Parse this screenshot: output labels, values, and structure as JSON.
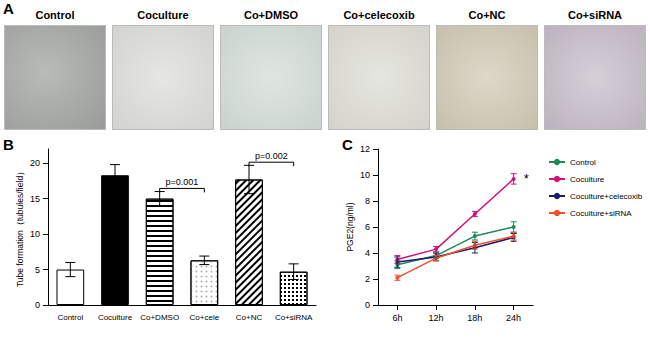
{
  "panel_labels": [
    "A",
    "B",
    "C"
  ],
  "images": {
    "titles": [
      "Control",
      "Coculture",
      "Co+DMSO",
      "Co+celecoxib",
      "Co+NC",
      "Co+siRNA"
    ]
  },
  "chart_data": [
    {
      "type": "bar",
      "categories": [
        "Control",
        "Coculture",
        "Co+DMSO",
        "Co+cele",
        "Co+NC",
        "Co+siRNA"
      ],
      "values": [
        5,
        18.3,
        15,
        6.3,
        17.7,
        4.7
      ],
      "errors": [
        1,
        1.5,
        1,
        0.6,
        2,
        1.1
      ],
      "colors": [
        "#ffffff",
        "#000000",
        "#ffffff",
        "#ffffff",
        "#ffffff",
        "#ffffff"
      ],
      "y_label": "Tube formation（tubules/field）",
      "ylim": [
        0,
        22
      ],
      "yticks": [
        0,
        5,
        10,
        15,
        20
      ],
      "grid": false,
      "comparisons": [
        {
          "pair": [
            "Co+DMSO",
            "Co+cele"
          ],
          "label": "p=0.001"
        },
        {
          "pair": [
            "Co+NC",
            "Co+siRNA"
          ],
          "label": "p=0.002"
        }
      ]
    },
    {
      "type": "line",
      "categories": [
        "6h",
        "12h",
        "18h",
        "24h"
      ],
      "series": [
        {
          "name": "Control",
          "color": "#1b8a5a",
          "marker": "circle",
          "values": [
            3.1,
            3.8,
            5.3,
            6.0
          ],
          "errors": [
            0.3,
            0.2,
            0.3,
            0.4
          ]
        },
        {
          "name": "Coculture",
          "color": "#d1127a",
          "marker": "circle",
          "values": [
            3.5,
            4.3,
            7.0,
            9.7
          ],
          "errors": [
            0.3,
            0.2,
            0.2,
            0.4
          ]
        },
        {
          "name": "Coculture+celecoxib",
          "color": "#1c1c6e",
          "marker": "circle",
          "values": [
            3.3,
            3.7,
            4.4,
            5.2
          ],
          "errors": [
            0.4,
            0.3,
            0.4,
            0.3
          ]
        },
        {
          "name": "Coculture+siRNA",
          "color": "#f0502a",
          "marker": "circle",
          "values": [
            2.1,
            3.6,
            4.6,
            5.3
          ],
          "errors": [
            0.2,
            0.2,
            0.3,
            0.3
          ]
        }
      ],
      "y_label": "PGE2(ng/ml)",
      "ylim": [
        0,
        12
      ],
      "yticks": [
        0,
        2,
        4,
        6,
        8,
        10,
        12
      ],
      "grid": false,
      "legend": "upper right",
      "annotations": [
        {
          "text": "*",
          "series": "Coculture",
          "category": "24h"
        }
      ]
    }
  ]
}
